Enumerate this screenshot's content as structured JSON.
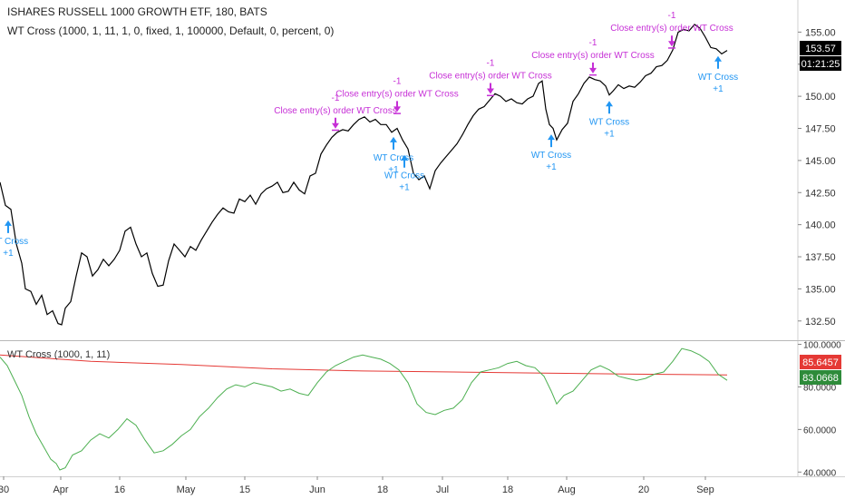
{
  "header": {
    "symbol_title": "ISHARES RUSSELL 1000 GROWTH ETF, 180, BATS",
    "strategy_title": "WT Cross (1000, 1, 11, 1, 0, fixed, 1, 100000, Default, 0, percent, 0)"
  },
  "price_pane": {
    "last_price": "153.57",
    "countdown": "01:21:25",
    "y_ticks": [
      "155.00",
      "152.50",
      "150.00",
      "147.50",
      "145.00",
      "142.50",
      "140.00",
      "137.50",
      "135.00",
      "132.50"
    ],
    "colors": {
      "line": "#000000",
      "badge": "#000000"
    }
  },
  "oscillator_pane": {
    "title": "WT Cross (1000, 1, 11)",
    "y_ticks": [
      "100.0000",
      "80.0000",
      "60.0000",
      "40.0000"
    ],
    "value_red": "85.6457",
    "value_green": "83.0668",
    "colors": {
      "red": "#e53935",
      "green": "#4caf50"
    }
  },
  "x_axis": {
    "labels": [
      "30",
      "Apr",
      "16",
      "May",
      "15",
      "Jun",
      "18",
      "Jul",
      "18",
      "Aug",
      "20",
      "Sep"
    ]
  },
  "trade_markers": {
    "entry_label": "WT Cross",
    "entry_qty": "+1",
    "exit_label": "Close entry(s) order WT Cross",
    "exit_qty": "-1",
    "colors": {
      "entry": "#2196f3",
      "exit": "#c62fd6"
    }
  },
  "chart_data": {
    "type": "line",
    "price_series": {
      "ylim": [
        131,
        157.5
      ],
      "points": [
        [
          0,
          143.3
        ],
        [
          6,
          141.5
        ],
        [
          12,
          141.2
        ],
        [
          18,
          138.5
        ],
        [
          24,
          137
        ],
        [
          28,
          135
        ],
        [
          34,
          134.8
        ],
        [
          40,
          133.8
        ],
        [
          46,
          134.5
        ],
        [
          52,
          133
        ],
        [
          58,
          133.3
        ],
        [
          64,
          132.3
        ],
        [
          68,
          132.2
        ],
        [
          72,
          133.5
        ],
        [
          78,
          134
        ],
        [
          84,
          136
        ],
        [
          90,
          137.8
        ],
        [
          96,
          137.5
        ],
        [
          102,
          136
        ],
        [
          108,
          136.5
        ],
        [
          114,
          137.3
        ],
        [
          120,
          136.8
        ],
        [
          126,
          137.3
        ],
        [
          132,
          138
        ],
        [
          138,
          139.5
        ],
        [
          144,
          139.8
        ],
        [
          150,
          138.5
        ],
        [
          156,
          137.5
        ],
        [
          162,
          137.8
        ],
        [
          168,
          136.2
        ],
        [
          174,
          135.2
        ],
        [
          180,
          135.3
        ],
        [
          186,
          137.2
        ],
        [
          192,
          138.5
        ],
        [
          198,
          138
        ],
        [
          204,
          137.5
        ],
        [
          210,
          138.3
        ],
        [
          216,
          138
        ],
        [
          222,
          138.8
        ],
        [
          228,
          139.5
        ],
        [
          234,
          140.2
        ],
        [
          240,
          140.8
        ],
        [
          246,
          141.3
        ],
        [
          252,
          141
        ],
        [
          258,
          140.9
        ],
        [
          264,
          142
        ],
        [
          270,
          141.8
        ],
        [
          276,
          142.3
        ],
        [
          282,
          141.6
        ],
        [
          288,
          142.4
        ],
        [
          294,
          142.8
        ],
        [
          300,
          143
        ],
        [
          306,
          143.3
        ],
        [
          312,
          142.5
        ],
        [
          318,
          142.6
        ],
        [
          324,
          143.3
        ],
        [
          330,
          142.7
        ],
        [
          336,
          142.4
        ],
        [
          342,
          143.8
        ],
        [
          348,
          144
        ],
        [
          354,
          145.5
        ],
        [
          360,
          146.2
        ],
        [
          366,
          146.8
        ],
        [
          372,
          147.2
        ],
        [
          378,
          147.4
        ],
        [
          384,
          147.3
        ],
        [
          390,
          147.8
        ],
        [
          396,
          148.2
        ],
        [
          402,
          148.4
        ],
        [
          408,
          148
        ],
        [
          414,
          148.2
        ],
        [
          420,
          147.8
        ],
        [
          426,
          147.8
        ],
        [
          432,
          147.2
        ],
        [
          438,
          147.5
        ],
        [
          444,
          146.6
        ],
        [
          450,
          145.9
        ],
        [
          456,
          144
        ],
        [
          462,
          143.5
        ],
        [
          468,
          143.8
        ],
        [
          474,
          142.8
        ],
        [
          480,
          144.2
        ],
        [
          486,
          144.8
        ],
        [
          492,
          145.3
        ],
        [
          498,
          145.8
        ],
        [
          504,
          146.3
        ],
        [
          510,
          147
        ],
        [
          516,
          147.8
        ],
        [
          522,
          148.5
        ],
        [
          528,
          149
        ],
        [
          534,
          149.2
        ],
        [
          540,
          149.7
        ],
        [
          546,
          150.2
        ],
        [
          552,
          150
        ],
        [
          558,
          149.6
        ],
        [
          564,
          149.8
        ],
        [
          570,
          149.5
        ],
        [
          576,
          149.4
        ],
        [
          582,
          149.8
        ],
        [
          588,
          150
        ],
        [
          594,
          151
        ],
        [
          598,
          151.2
        ],
        [
          602,
          149
        ],
        [
          606,
          147.8
        ],
        [
          610,
          147.5
        ],
        [
          614,
          146.6
        ],
        [
          620,
          147.4
        ],
        [
          626,
          147.9
        ],
        [
          632,
          149.6
        ],
        [
          638,
          150.2
        ],
        [
          644,
          151
        ],
        [
          650,
          151.5
        ],
        [
          656,
          151.3
        ],
        [
          662,
          151.2
        ],
        [
          668,
          150.8
        ],
        [
          672,
          150.1
        ],
        [
          676,
          150.4
        ],
        [
          682,
          150.9
        ],
        [
          688,
          150.6
        ],
        [
          694,
          150.8
        ],
        [
          700,
          150.7
        ],
        [
          706,
          151.1
        ],
        [
          712,
          151.6
        ],
        [
          718,
          151.8
        ],
        [
          724,
          152.3
        ],
        [
          730,
          152.4
        ],
        [
          736,
          152.8
        ],
        [
          742,
          153.6
        ],
        [
          748,
          155
        ],
        [
          754,
          155.2
        ],
        [
          760,
          155.1
        ],
        [
          766,
          155.6
        ],
        [
          772,
          155.3
        ],
        [
          778,
          154.6
        ],
        [
          784,
          153.8
        ],
        [
          790,
          153.7
        ],
        [
          796,
          153.3
        ],
        [
          802,
          153.57
        ]
      ]
    },
    "oscillator_series": {
      "ylim": [
        38,
        101.5
      ],
      "green_points": [
        [
          0,
          94
        ],
        [
          8,
          90
        ],
        [
          16,
          83
        ],
        [
          24,
          76
        ],
        [
          32,
          66
        ],
        [
          40,
          58
        ],
        [
          48,
          52
        ],
        [
          56,
          46
        ],
        [
          62,
          44
        ],
        [
          66,
          41
        ],
        [
          72,
          42
        ],
        [
          80,
          48
        ],
        [
          90,
          50
        ],
        [
          100,
          55
        ],
        [
          110,
          58
        ],
        [
          120,
          56
        ],
        [
          130,
          60
        ],
        [
          140,
          65
        ],
        [
          150,
          62
        ],
        [
          160,
          55
        ],
        [
          170,
          49
        ],
        [
          180,
          50
        ],
        [
          190,
          53
        ],
        [
          200,
          57
        ],
        [
          210,
          60
        ],
        [
          220,
          66
        ],
        [
          230,
          70
        ],
        [
          240,
          75
        ],
        [
          250,
          79
        ],
        [
          260,
          81
        ],
        [
          270,
          80
        ],
        [
          280,
          82
        ],
        [
          290,
          81
        ],
        [
          300,
          80
        ],
        [
          310,
          78
        ],
        [
          320,
          79
        ],
        [
          330,
          77
        ],
        [
          340,
          76
        ],
        [
          350,
          82
        ],
        [
          360,
          87
        ],
        [
          370,
          90
        ],
        [
          380,
          92
        ],
        [
          390,
          94
        ],
        [
          400,
          95
        ],
        [
          410,
          94
        ],
        [
          420,
          93
        ],
        [
          430,
          91
        ],
        [
          440,
          88
        ],
        [
          450,
          82
        ],
        [
          460,
          72
        ],
        [
          470,
          68
        ],
        [
          480,
          67
        ],
        [
          490,
          69
        ],
        [
          500,
          70
        ],
        [
          510,
          74
        ],
        [
          520,
          82
        ],
        [
          530,
          87
        ],
        [
          540,
          88
        ],
        [
          550,
          89
        ],
        [
          560,
          91
        ],
        [
          570,
          92
        ],
        [
          580,
          90
        ],
        [
          590,
          89
        ],
        [
          600,
          85
        ],
        [
          608,
          78
        ],
        [
          614,
          72
        ],
        [
          622,
          76
        ],
        [
          632,
          78
        ],
        [
          642,
          83
        ],
        [
          652,
          88
        ],
        [
          662,
          90
        ],
        [
          672,
          88
        ],
        [
          682,
          85
        ],
        [
          692,
          84
        ],
        [
          702,
          83
        ],
        [
          712,
          84
        ],
        [
          722,
          86
        ],
        [
          732,
          87
        ],
        [
          742,
          92
        ],
        [
          752,
          98
        ],
        [
          762,
          97
        ],
        [
          772,
          95
        ],
        [
          782,
          92
        ],
        [
          792,
          86
        ],
        [
          802,
          83.07
        ]
      ],
      "red_points": [
        [
          0,
          95
        ],
        [
          100,
          92
        ],
        [
          200,
          90.5
        ],
        [
          300,
          88.5
        ],
        [
          400,
          87.5
        ],
        [
          500,
          87
        ],
        [
          600,
          86.5
        ],
        [
          700,
          86
        ],
        [
          802,
          85.65
        ]
      ]
    },
    "entry_markers": [
      {
        "x": 9,
        "price": 140.9,
        "text_rows": 1
      },
      {
        "x": 434,
        "price": 147.4,
        "text_rows": 1
      },
      {
        "x": 446,
        "price": 146.0,
        "text_rows": 2
      },
      {
        "x": 608,
        "price": 147.6,
        "text_rows": 1
      },
      {
        "x": 672,
        "price": 150.2,
        "text_rows": 1
      },
      {
        "x": 792,
        "price": 153.7,
        "text_rows": 1
      }
    ],
    "exit_markers": [
      {
        "x": 370,
        "price": 147.2
      },
      {
        "x": 438,
        "price": 148.5
      },
      {
        "x": 541,
        "price": 149.9
      },
      {
        "x": 654,
        "price": 151.5
      },
      {
        "x": 741,
        "price": 153.6
      }
    ]
  }
}
